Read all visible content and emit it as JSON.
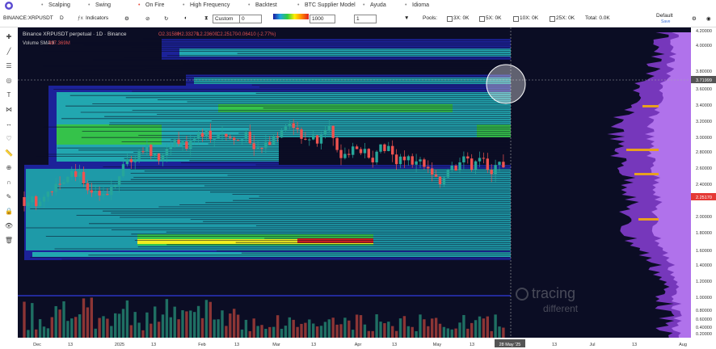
{
  "menu": [
    "Scalping",
    "Swing",
    "On Fire",
    "High Frequency",
    "Backtest",
    "BTC Supplier Model",
    "Ayuda",
    "Idioma"
  ],
  "toolbar": {
    "symbol": "BINANCE:XRPUSDT",
    "interval": "D",
    "indicators": "Indicators",
    "mode": "Custom",
    "mode_value": "0",
    "scale_value": "1000",
    "count_value": "1",
    "pools": "Pools:",
    "pool_items": [
      "3X: 0K",
      "5X: 0K",
      "10X: 0K",
      "25X: 0K"
    ],
    "total": "Total: 0.0K",
    "layout": "Default",
    "save": "Save"
  },
  "legend": {
    "title": "Binance XRPUSDT perpetual · 1D · Binance",
    "ohlc": [
      "O2.31580",
      "H2.33270",
      "L2.23600",
      "C2.25170"
    ],
    "change": "-0.06410 (-2.77%)",
    "volume_name": "Volume SMA 9",
    "volume_value": "387.369M"
  },
  "price_axis": [
    "4.20000",
    "4.00000",
    "3.80000",
    "3.71999",
    "3.60000",
    "3.40000",
    "3.20000",
    "3.00000",
    "2.80000",
    "2.60000",
    "2.40000",
    "2.25170",
    "2.00000",
    "1.80000",
    "1.60000",
    "1.40000",
    "1.20000",
    "1.00000",
    "0.80000",
    "0.60000",
    "0.40000",
    "0.20000"
  ],
  "time_axis": [
    "Dec",
    "13",
    "2025",
    "13",
    "Feb",
    "13",
    "Mar",
    "13",
    "Apr",
    "13",
    "May",
    "13",
    "28 May '25",
    "13",
    "Jul",
    "13",
    "Aug"
  ],
  "watermark": [
    "tracing",
    "different"
  ]
}
